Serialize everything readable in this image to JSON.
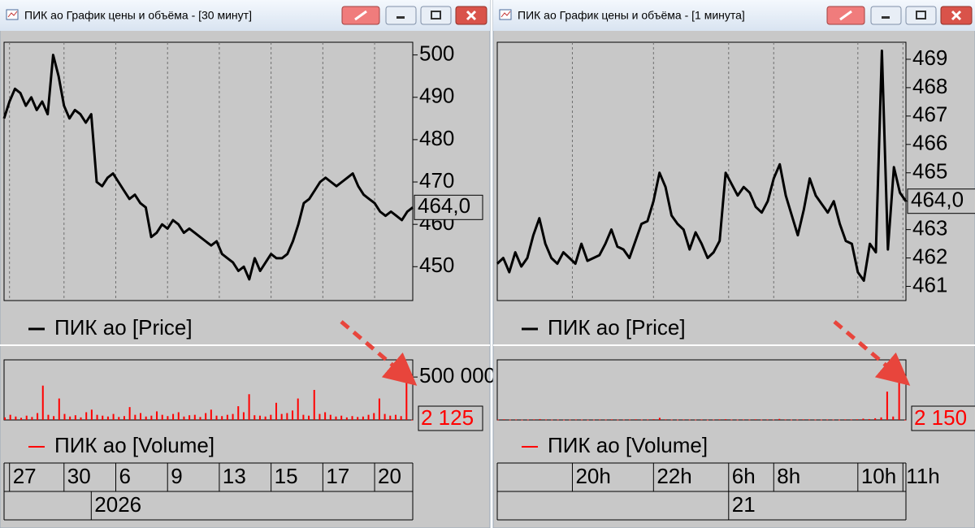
{
  "windows": [
    {
      "title": "ПИК ао График цены и объёма - [30 минут]"
    },
    {
      "title": "ПИК ао График цены и объёма - [1 минута]"
    }
  ],
  "chart_data": [
    {
      "type": "line",
      "series": [
        {
          "name": "ПИК ао [Price]",
          "color": "#000000",
          "values": [
            485,
            489,
            492,
            491,
            488,
            490,
            487,
            489,
            486,
            500,
            495,
            488,
            485,
            487,
            486,
            484,
            486,
            470,
            469,
            471,
            472,
            470,
            468,
            466,
            467,
            465,
            464,
            457,
            458,
            460,
            459,
            461,
            460,
            458,
            459,
            458,
            457,
            456,
            455,
            456,
            453,
            452,
            451,
            449,
            450,
            447,
            452,
            449,
            451,
            453,
            452,
            452,
            453,
            456,
            460,
            465,
            466,
            468,
            470,
            471,
            470,
            469,
            470,
            471,
            472,
            469,
            467,
            466,
            465,
            463,
            462,
            463,
            462,
            461,
            463,
            464
          ]
        }
      ],
      "ylim": [
        442,
        503
      ],
      "yticks": [
        450,
        460,
        470,
        480,
        490,
        500
      ],
      "current_value": {
        "value": 464.0,
        "label": "464,0"
      },
      "xlim": [
        0,
        75
      ],
      "xticks": [
        {
          "value": 1,
          "label": "27"
        },
        {
          "value": 11,
          "label": "30"
        },
        {
          "value": 20.5,
          "label": "6"
        },
        {
          "value": 30,
          "label": "9"
        },
        {
          "value": 39.5,
          "label": "13"
        },
        {
          "value": 49,
          "label": "15"
        },
        {
          "value": 58.5,
          "label": "17"
        },
        {
          "value": 68,
          "label": "20"
        }
      ],
      "xticks_major": [
        {
          "value": 16,
          "label": "2026"
        }
      ],
      "grid": true
    },
    {
      "type": "bar",
      "series": [
        {
          "name": "ПИК ао [Volume]",
          "color": "#ff0000",
          "values": [
            30000,
            60000,
            40000,
            25000,
            50000,
            35000,
            80000,
            400000,
            60000,
            45000,
            250000,
            70000,
            40000,
            55000,
            30000,
            90000,
            120000,
            60000,
            50000,
            40000,
            70000,
            35000,
            45000,
            150000,
            60000,
            80000,
            40000,
            50000,
            100000,
            60000,
            45000,
            70000,
            90000,
            40000,
            55000,
            60000,
            35000,
            80000,
            120000,
            50000,
            45000,
            60000,
            70000,
            160000,
            90000,
            300000,
            55000,
            50000,
            40000,
            60000,
            200000,
            70000,
            80000,
            110000,
            250000,
            60000,
            50000,
            350000,
            70000,
            90000,
            60000,
            40000,
            50000,
            30000,
            45000,
            35000,
            40000,
            60000,
            80000,
            250000,
            70000,
            50000,
            60000,
            45000,
            600000,
            2125
          ]
        }
      ],
      "ylim": [
        0,
        700000
      ],
      "yticks": [
        {
          "value": 500000,
          "label": "500 000"
        }
      ],
      "current_value": {
        "value": 2125,
        "label": "2 125"
      }
    },
    {
      "type": "line",
      "series": [
        {
          "name": "ПИК ао [Price]",
          "color": "#000000",
          "values": [
            461.8,
            462.0,
            461.5,
            462.2,
            461.7,
            462.0,
            462.8,
            463.4,
            462.5,
            462.0,
            461.8,
            462.2,
            462.0,
            461.8,
            462.5,
            461.9,
            462.0,
            462.1,
            462.5,
            463.0,
            462.4,
            462.3,
            462.0,
            462.6,
            463.2,
            463.3,
            464.0,
            465.0,
            464.5,
            463.5,
            463.2,
            463.0,
            462.3,
            462.9,
            462.5,
            462.0,
            462.2,
            462.6,
            465.0,
            464.6,
            464.2,
            464.5,
            464.3,
            463.8,
            463.6,
            464.0,
            464.8,
            465.3,
            464.2,
            463.5,
            462.8,
            463.7,
            464.8,
            464.2,
            463.9,
            463.6,
            464.0,
            463.2,
            462.6,
            462.5,
            461.5,
            461.2,
            462.5,
            462.2,
            469.3,
            462.3,
            465.2,
            464.3,
            464.0
          ]
        }
      ],
      "ylim": [
        460.5,
        469.6
      ],
      "yticks": [
        461,
        462,
        463,
        464,
        465,
        466,
        467,
        468,
        469
      ],
      "current_value": {
        "value": 464.0,
        "label": "464,0"
      },
      "xlim": [
        0,
        68
      ],
      "xticks": [
        {
          "value": 12.5,
          "label": "20h"
        },
        {
          "value": 26,
          "label": "22h"
        },
        {
          "value": 38.5,
          "label": "6h"
        },
        {
          "value": 46,
          "label": "8h"
        },
        {
          "value": 60,
          "label": "10h"
        },
        {
          "value": 67.5,
          "label": "11h"
        }
      ],
      "xticks_major": [
        {
          "value": 38.5,
          "label": "21"
        }
      ],
      "grid": true
    },
    {
      "type": "bar",
      "series": [
        {
          "name": "ПИК ао [Volume]",
          "color": "#ff0000",
          "values": [
            5000,
            8000,
            4000,
            6000,
            3000,
            5000,
            7000,
            10000,
            6000,
            4000,
            5000,
            3000,
            4000,
            6000,
            5000,
            3000,
            4000,
            6000,
            5000,
            7000,
            4000,
            5000,
            6000,
            8000,
            5000,
            6000,
            9000,
            25000,
            7000,
            5000,
            4000,
            6000,
            5000,
            4000,
            6000,
            3000,
            5000,
            7000,
            9000,
            5000,
            4000,
            6000,
            5000,
            8000,
            4000,
            6000,
            5000,
            12000,
            6000,
            4000,
            5000,
            7000,
            6000,
            5000,
            4000,
            6000,
            5000,
            4000,
            7000,
            6000,
            8000,
            15000,
            10000,
            20000,
            30000,
            330000,
            40000,
            680000,
            2150
          ]
        }
      ],
      "ylim": [
        0,
        700000
      ],
      "current_value": {
        "value": 2150,
        "label": "2 150"
      }
    }
  ]
}
